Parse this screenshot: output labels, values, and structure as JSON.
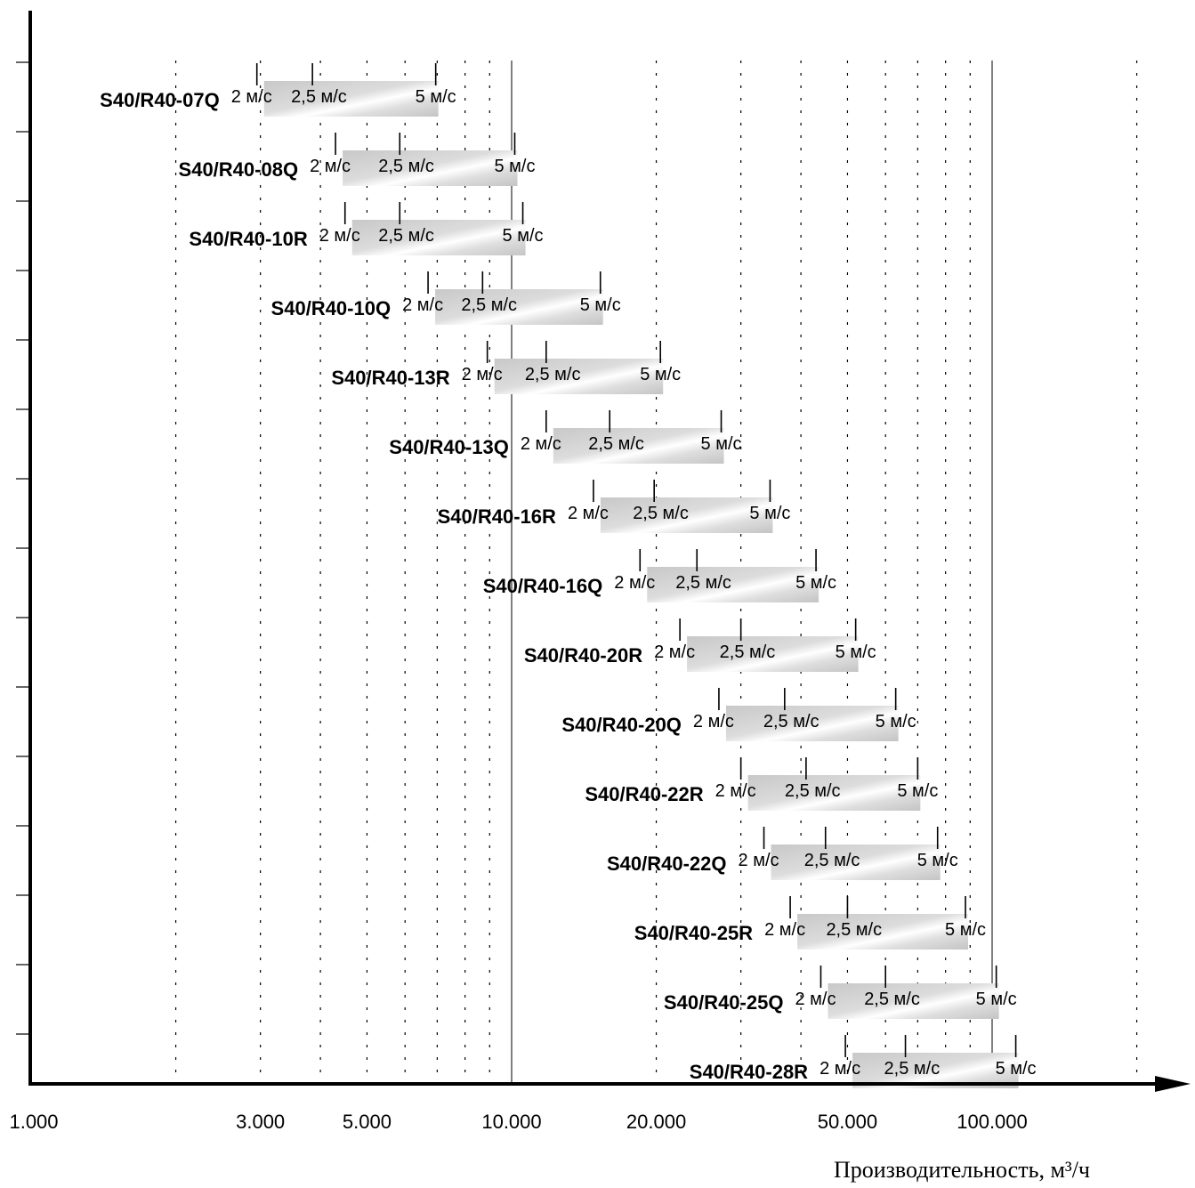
{
  "chart_data": {
    "type": "range-bar",
    "xscale": "log",
    "xlim": [
      1000,
      200000
    ],
    "xlabel": "Производительность, м³/ч",
    "x_ticks": [
      {
        "value": 1000,
        "label": "1.000"
      },
      {
        "value": 3000,
        "label": "3.000"
      },
      {
        "value": 5000,
        "label": "5.000"
      },
      {
        "value": 10000,
        "label": "10.000"
      },
      {
        "value": 20000,
        "label": "20.000"
      },
      {
        "value": 50000,
        "label": "50.000"
      },
      {
        "value": 100000,
        "label": "100.000"
      }
    ],
    "minor_gridlines": [
      2000,
      3000,
      4000,
      5000,
      6000,
      7000,
      8000,
      9000,
      20000,
      30000,
      40000,
      50000,
      60000,
      70000,
      80000,
      90000,
      200000
    ],
    "major_gridlines": [
      10000,
      100000
    ],
    "speed_labels": [
      "2 м/с",
      "2,5 м/с",
      "5 м/с"
    ],
    "series": [
      {
        "name": "S40/R40-07Q",
        "v2": 2950,
        "v25": 3850,
        "v5": 6950
      },
      {
        "name": "S40/R40-08Q",
        "v2": 4300,
        "v25": 5850,
        "v5": 10150
      },
      {
        "name": "S40/R40-10R",
        "v2": 4500,
        "v25": 5850,
        "v5": 10550
      },
      {
        "name": "S40/R40-10Q",
        "v2": 6700,
        "v25": 8700,
        "v5": 15300
      },
      {
        "name": "S40/R40-13R",
        "v2": 8900,
        "v25": 11800,
        "v5": 20400
      },
      {
        "name": "S40/R40-13Q",
        "v2": 11800,
        "v25": 16000,
        "v5": 27300
      },
      {
        "name": "S40/R40-16R",
        "v2": 14800,
        "v25": 19800,
        "v5": 34500
      },
      {
        "name": "S40/R40-16Q",
        "v2": 18500,
        "v25": 24300,
        "v5": 43000
      },
      {
        "name": "S40/R40-20R",
        "v2": 22400,
        "v25": 30000,
        "v5": 52000
      },
      {
        "name": "S40/R40-20Q",
        "v2": 27000,
        "v25": 37000,
        "v5": 63000
      },
      {
        "name": "S40/R40-22R",
        "v2": 30000,
        "v25": 41000,
        "v5": 70000
      },
      {
        "name": "S40/R40-22Q",
        "v2": 33500,
        "v25": 45000,
        "v5": 77000
      },
      {
        "name": "S40/R40-25R",
        "v2": 38000,
        "v25": 50000,
        "v5": 88000
      },
      {
        "name": "S40/R40-25Q",
        "v2": 44000,
        "v25": 60000,
        "v5": 102000
      },
      {
        "name": "S40/R40-28R",
        "v2": 49500,
        "v25": 66000,
        "v5": 112000
      }
    ]
  }
}
